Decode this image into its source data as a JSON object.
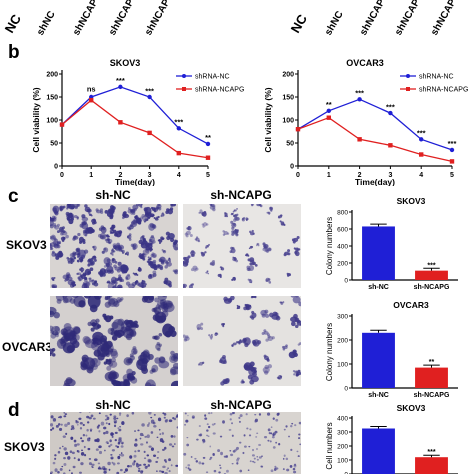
{
  "top_strip": {
    "labels": [
      "NC",
      "shNC",
      "shNCAPG-1",
      "shNCAPG-2",
      "shNCAPG-3",
      "NC",
      "shNC",
      "shNCAPG-1",
      "shNCAPG-2",
      "shNCAPG-3"
    ]
  },
  "panel_labels": {
    "b": "b",
    "c": "c",
    "d": "d"
  },
  "panel_b": {
    "charts": [
      {
        "title": "SKOV3",
        "xlabel": "Time(day)",
        "ylabel": "Cell viability (%)",
        "x": [
          0,
          1,
          2,
          3,
          4,
          5
        ],
        "xticks": [
          "0",
          "1",
          "2",
          "3",
          "4",
          "5"
        ],
        "yticks": [
          "0",
          "50",
          "100",
          "150",
          "200"
        ],
        "ylim": [
          0,
          200
        ],
        "series": [
          {
            "name": "shRNA-NC",
            "color": "#1f1fd6",
            "values": [
              90,
              150,
              172,
              150,
              82,
              48
            ]
          },
          {
            "name": "shRNA-NCAPG",
            "color": "#e02020",
            "values": [
              90,
              143,
              95,
              72,
              28,
              18
            ]
          }
        ],
        "annotations": [
          {
            "x": 1,
            "text": "ns",
            "y": 162
          },
          {
            "x": 2,
            "text": "***",
            "y": 180
          },
          {
            "x": 3,
            "text": "***",
            "y": 158
          },
          {
            "x": 4,
            "text": "***",
            "y": 90
          },
          {
            "x": 5,
            "text": "**",
            "y": 56
          }
        ]
      },
      {
        "title": "OVCAR3",
        "xlabel": "Time(day)",
        "ylabel": "Cell viability (%)",
        "x": [
          0,
          1,
          2,
          3,
          4,
          5
        ],
        "xticks": [
          "0",
          "1",
          "2",
          "3",
          "4",
          "5"
        ],
        "yticks": [
          "0",
          "50",
          "100",
          "150",
          "200"
        ],
        "ylim": [
          0,
          200
        ],
        "series": [
          {
            "name": "shRNA-NC",
            "color": "#1f1fd6",
            "values": [
              80,
              120,
              145,
              115,
              58,
              35
            ]
          },
          {
            "name": "shRNA-NCAPG",
            "color": "#e02020",
            "values": [
              80,
              105,
              58,
              45,
              25,
              10
            ]
          }
        ],
        "annotations": [
          {
            "x": 1,
            "text": "**",
            "y": 128
          },
          {
            "x": 2,
            "text": "***",
            "y": 153
          },
          {
            "x": 3,
            "text": "***",
            "y": 123
          },
          {
            "x": 4,
            "text": "***",
            "y": 66
          },
          {
            "x": 5,
            "text": "***",
            "y": 43
          }
        ]
      }
    ]
  },
  "panel_c": {
    "column_headers": [
      "sh-NC",
      "sh-NCAPG"
    ],
    "row_labels": [
      "SKOV3",
      "OVCAR3"
    ],
    "charts": [
      {
        "title": "SKOV3",
        "ylabel": "Colony numbers",
        "categories": [
          "sh-NC",
          "sh-NCAPG"
        ],
        "values": [
          630,
          110
        ],
        "colors": [
          "#1f1fd6",
          "#e02020"
        ],
        "yticks": [
          "0",
          "200",
          "400",
          "600",
          "800"
        ],
        "ylim": [
          0,
          800
        ],
        "significance": "***"
      },
      {
        "title": "OVCAR3",
        "ylabel": "Colony numbers",
        "categories": [
          "sh-NC",
          "sh-NCAPG"
        ],
        "values": [
          230,
          85
        ],
        "colors": [
          "#1f1fd6",
          "#e02020"
        ],
        "yticks": [
          "0",
          "100",
          "200",
          "300"
        ],
        "ylim": [
          0,
          300
        ],
        "significance": "**"
      }
    ]
  },
  "panel_d": {
    "column_headers": [
      "sh-NC",
      "sh-NCAPG"
    ],
    "row_labels": [
      "SKOV3"
    ],
    "chart": {
      "title": "SKOV3",
      "ylabel": "Cell numbers",
      "categories": [
        "sh-NC",
        "sh-NCAPG"
      ],
      "values": [
        325,
        120
      ],
      "colors": [
        "#1f1fd6",
        "#e02020"
      ],
      "yticks": [
        "0",
        "100",
        "200",
        "300",
        "400"
      ],
      "ylim": [
        0,
        400
      ],
      "significance": "***"
    }
  }
}
